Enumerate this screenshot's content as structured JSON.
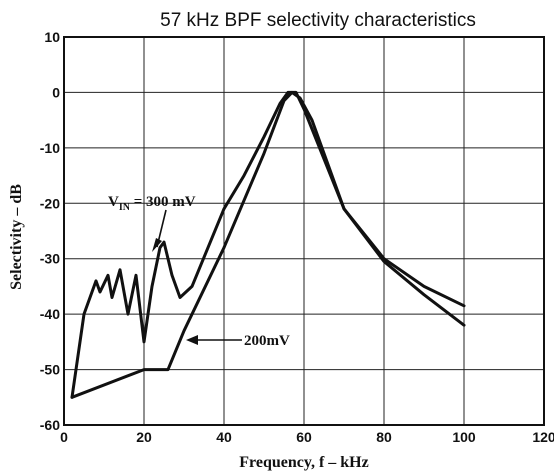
{
  "chart_data": {
    "type": "line",
    "title": "57 kHz BPF selectivity characteristics",
    "xlabel": "Frequency, f – kHz",
    "ylabel": "Selectivity – dB",
    "xlim": [
      0,
      120
    ],
    "ylim": [
      -60,
      10
    ],
    "x_ticks": [
      0,
      20,
      40,
      60,
      80,
      100,
      120
    ],
    "y_ticks": [
      10,
      0,
      -10,
      -20,
      -30,
      -40,
      -50,
      -60
    ],
    "grid": true,
    "series": [
      {
        "label_main": "V",
        "label_sub": "IN",
        "label_rest": " = 300 mV",
        "points": [
          [
            2,
            -55
          ],
          [
            5,
            -40
          ],
          [
            8,
            -34
          ],
          [
            9,
            -36
          ],
          [
            11,
            -33
          ],
          [
            12,
            -37
          ],
          [
            14,
            -32
          ],
          [
            16,
            -40
          ],
          [
            18,
            -33
          ],
          [
            20,
            -45
          ],
          [
            22,
            -35
          ],
          [
            24,
            -28
          ],
          [
            25,
            -27
          ],
          [
            27,
            -33
          ],
          [
            29,
            -37
          ],
          [
            32,
            -35
          ],
          [
            40,
            -21
          ],
          [
            45,
            -15
          ],
          [
            50,
            -8
          ],
          [
            54,
            -2
          ],
          [
            56,
            0
          ],
          [
            58,
            0
          ],
          [
            60,
            -3
          ],
          [
            65,
            -12
          ],
          [
            70,
            -21
          ],
          [
            80,
            -30
          ],
          [
            90,
            -35
          ],
          [
            100,
            -38.5
          ]
        ]
      },
      {
        "label": "200mV",
        "points": [
          [
            2,
            -55
          ],
          [
            20,
            -50
          ],
          [
            26,
            -50
          ],
          [
            30,
            -43
          ],
          [
            40,
            -28
          ],
          [
            50,
            -11
          ],
          [
            55,
            -1.5
          ],
          [
            57,
            0
          ],
          [
            59,
            -1
          ],
          [
            62,
            -5
          ],
          [
            65,
            -11
          ],
          [
            70,
            -21
          ],
          [
            80,
            -30.5
          ],
          [
            90,
            -36.5
          ],
          [
            100,
            -42
          ]
        ]
      }
    ]
  }
}
